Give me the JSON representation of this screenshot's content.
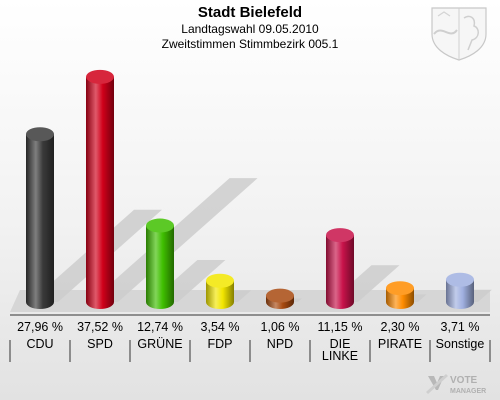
{
  "header": {
    "title": "Stadt Bielefeld",
    "subtitle1": "Landtagswahl 09.05.2010",
    "subtitle2": "Zweitstimmen Stimmbezirk 005.1"
  },
  "logo": {
    "icon": "nrw-coat-of-arms-icon",
    "text": "VOTE MANAGER"
  },
  "chart_data": {
    "type": "bar",
    "title": "Stadt Bielefeld",
    "subtitle": "Landtagswahl 09.05.2010 — Zweitstimmen Stimmbezirk 005.1",
    "categories": [
      "CDU",
      "SPD",
      "GRÜNE",
      "FDP",
      "NPD",
      "DIE LINKE",
      "PIRATE",
      "Sonstige"
    ],
    "values": [
      27.96,
      37.52,
      12.74,
      3.54,
      1.06,
      11.15,
      2.3,
      3.71
    ],
    "labels": [
      "27,96 %",
      "37,52 %",
      "12,74 %",
      "3,54 %",
      "1,06 %",
      "11,15 %",
      "2,30 %",
      "3,71 %"
    ],
    "colors": [
      "#3a3a3a",
      "#d0001a",
      "#3fbf00",
      "#f2e600",
      "#a84a10",
      "#c8124a",
      "#ff8c00",
      "#a0b0e0"
    ],
    "unit": "%",
    "ylim": [
      0,
      40
    ]
  }
}
